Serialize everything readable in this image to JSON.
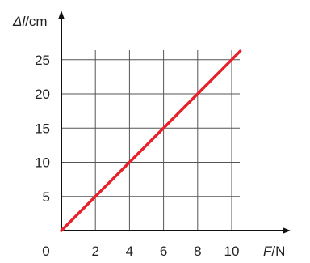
{
  "chart_data": {
    "type": "line",
    "xlabel_var": "F",
    "xlabel_unit": "N",
    "ylabel_var": "Δl",
    "ylabel_unit": "cm",
    "origin_label": "0",
    "x_ticks": [
      2,
      4,
      6,
      8,
      10
    ],
    "y_ticks": [
      5,
      10,
      15,
      20,
      25
    ],
    "xlim": [
      0,
      10.7
    ],
    "ylim": [
      0,
      26.5
    ],
    "grid": true,
    "series": [
      {
        "x": [
          0,
          10.5
        ],
        "y": [
          0,
          26.25
        ],
        "color": "#e8202a"
      }
    ],
    "colors": {
      "axis": "#111111",
      "grid": "#555555",
      "line": "#e8202a"
    }
  }
}
